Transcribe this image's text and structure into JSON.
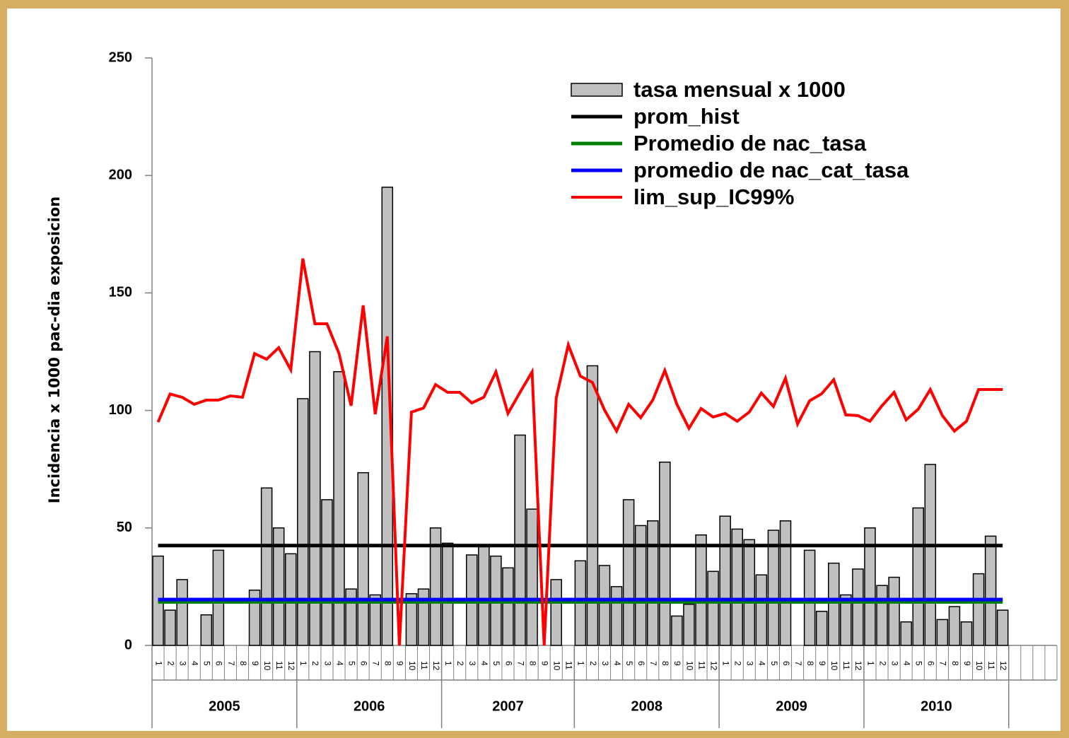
{
  "chart_data": {
    "type": "bar-line",
    "y_label": "Incidencia x 1000 pac-dia exposicion",
    "ylim": [
      0,
      250
    ],
    "yticks": [
      0,
      50,
      100,
      150,
      200,
      250
    ],
    "legend": "upper right",
    "categories": [
      "1",
      "2",
      "3",
      "4",
      "5",
      "6",
      "7",
      "8",
      "9",
      "10",
      "11",
      "12",
      "1",
      "2",
      "3",
      "4",
      "5",
      "6",
      "7",
      "8",
      "9",
      "10",
      "11",
      "12",
      "1",
      "2",
      "3",
      "4",
      "5",
      "6",
      "7",
      "8",
      "9",
      "10",
      "11",
      "1",
      "2",
      "3",
      "4",
      "5",
      "6",
      "7",
      "8",
      "9",
      "10",
      "11",
      "12",
      "1",
      "2",
      "3",
      "4",
      "5",
      "6",
      "7",
      "8",
      "9",
      "10",
      "11",
      "12",
      "1",
      "2",
      "3",
      "4",
      "5",
      "6",
      "7",
      "8",
      "9",
      "10",
      "11",
      "12",
      null,
      null,
      null,
      null
    ],
    "groups": [
      {
        "label": "2005",
        "count": 12
      },
      {
        "label": "2006",
        "count": 12
      },
      {
        "label": "2007",
        "count": 11
      },
      {
        "label": "2008",
        "count": 12
      },
      {
        "label": "2009",
        "count": 12
      },
      {
        "label": "2010",
        "count": 12
      }
    ],
    "series": [
      {
        "name": "tasa mensual x 1000",
        "type": "bar",
        "color": "#c0c0c0",
        "values": [
          38,
          15,
          28,
          null,
          13,
          40.5,
          null,
          null,
          23.5,
          67,
          50,
          39,
          105,
          125,
          62,
          116.5,
          24,
          73.5,
          21.5,
          195,
          null,
          22,
          24,
          50,
          43.5,
          null,
          38.5,
          42,
          38,
          33,
          89.5,
          58,
          null,
          28,
          null,
          36,
          119,
          34,
          25,
          62,
          51,
          53,
          78,
          12.5,
          17.5,
          47,
          31.5,
          55,
          49.5,
          45,
          30,
          49,
          53,
          null,
          40.5,
          14.5,
          35,
          21.5,
          32.5,
          50,
          25.5,
          29,
          10,
          58.5,
          77,
          11,
          16.5,
          10,
          30.5,
          46.5,
          15,
          null,
          null,
          null,
          null
        ]
      },
      {
        "name": "prom_hist",
        "type": "hline",
        "color": "#000000",
        "value": 42.5
      },
      {
        "name": "Promedio de nac_tasa",
        "type": "hline",
        "color": "#008000",
        "value": 18.5
      },
      {
        "name": "promedio de nac_cat_tasa",
        "type": "hline",
        "color": "#0000ff",
        "value": 19.5
      },
      {
        "name": "lim_sup_IC99%",
        "type": "line",
        "color": "#ff0000",
        "values": [
          95,
          107,
          105.6,
          102.6,
          104.4,
          104.4,
          106.2,
          105.6,
          124.2,
          121.8,
          126.7,
          117.3,
          164.6,
          136.9,
          136.9,
          124.2,
          102,
          144.7,
          98.4,
          131.5,
          0,
          99.3,
          101,
          111,
          107.7,
          107.7,
          103.2,
          105.6,
          116.4,
          98.7,
          107.7,
          116.4,
          0,
          105.3,
          127.9,
          114.6,
          111.9,
          100.2,
          91.2,
          102.6,
          96.9,
          104.4,
          117,
          102.6,
          92.4,
          100.8,
          97.2,
          98.7,
          95.4,
          99.3,
          107.4,
          101.7,
          113.7,
          94.2,
          104.1,
          107.1,
          113.1,
          98.1,
          97.8,
          95.4,
          102,
          107.7,
          96,
          100.5,
          108.9,
          97.8,
          91.2,
          95.4,
          108.9,
          108.9,
          108.9,
          null,
          null,
          null,
          null
        ]
      }
    ]
  }
}
